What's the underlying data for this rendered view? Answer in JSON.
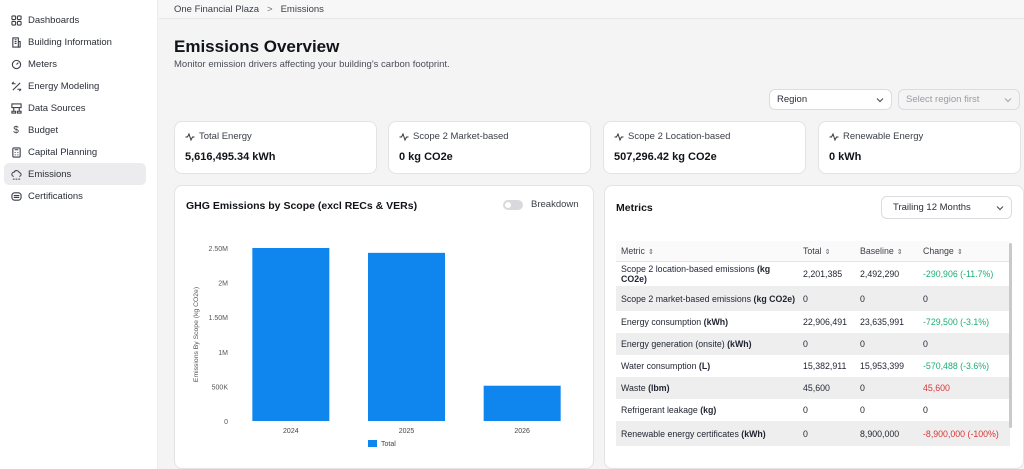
{
  "sidebar": {
    "items": [
      {
        "label": "Dashboards",
        "icon": "grid-icon",
        "active": false
      },
      {
        "label": "Building Information",
        "icon": "building-icon",
        "active": false
      },
      {
        "label": "Meters",
        "icon": "meter-icon",
        "active": false
      },
      {
        "label": "Energy Modeling",
        "icon": "modeling-icon",
        "active": false
      },
      {
        "label": "Data Sources",
        "icon": "data-sources-icon",
        "active": false
      },
      {
        "label": "Budget",
        "icon": "dollar-icon",
        "active": false
      },
      {
        "label": "Capital Planning",
        "icon": "calculator-icon",
        "active": false
      },
      {
        "label": "Emissions",
        "icon": "co2-cloud-icon",
        "active": true
      },
      {
        "label": "Certifications",
        "icon": "certificate-icon",
        "active": false
      }
    ]
  },
  "breadcrumb": {
    "root": "One Financial Plaza",
    "sep": ">",
    "current": "Emissions"
  },
  "page": {
    "title": "Emissions Overview",
    "subtitle": "Monitor emission drivers affecting your building's carbon footprint."
  },
  "filters": {
    "region": "Region",
    "region_secondary": "Select region first"
  },
  "stats": [
    {
      "label": "Total Energy",
      "value": "5,616,495.34 kWh"
    },
    {
      "label": "Scope 2 Market-based",
      "value": "0 kg CO2e"
    },
    {
      "label": "Scope 2 Location-based",
      "value": "507,296.42 kg CO2e"
    },
    {
      "label": "Renewable Energy",
      "value": "0 kWh"
    }
  ],
  "chart_panel": {
    "title": "GHG Emissions by Scope (excl RECs & VERs)",
    "toggle_label": "Breakdown",
    "toggle_on": false
  },
  "chart_data": {
    "type": "bar",
    "categories": [
      "2024",
      "2025",
      "2026"
    ],
    "series": [
      {
        "name": "Total",
        "values": [
          2500000,
          2430000,
          510000
        ],
        "color": "#0f86ee"
      }
    ],
    "ylabel": "Emissions By Scope (kg CO2e)",
    "yticks": [
      "0",
      "500K",
      "1M",
      "1.50M",
      "2M",
      "2.50M"
    ],
    "ylim": [
      0,
      2500000
    ],
    "legend": "bottom-center",
    "grid": false
  },
  "metrics": {
    "title": "Metrics",
    "period": "Trailing 12 Months",
    "columns": [
      "Metric",
      "Total",
      "Baseline",
      "Change"
    ],
    "rows": [
      {
        "metric": "Scope 2 location-based emissions",
        "unit": "(kg CO2e)",
        "total": "2,201,385",
        "baseline": "2,492,290",
        "change": "-290,906 (-11.7%)",
        "trend": "pos"
      },
      {
        "metric": "Scope 2 market-based emissions",
        "unit": "(kg CO2e)",
        "total": "0",
        "baseline": "0",
        "change": "0",
        "trend": "none"
      },
      {
        "metric": "Energy consumption",
        "unit": "(kWh)",
        "total": "22,906,491",
        "baseline": "23,635,991",
        "change": "-729,500 (-3.1%)",
        "trend": "pos"
      },
      {
        "metric": "Energy generation (onsite)",
        "unit": "(kWh)",
        "total": "0",
        "baseline": "0",
        "change": "0",
        "trend": "none"
      },
      {
        "metric": "Water consumption",
        "unit": "(L)",
        "total": "15,382,911",
        "baseline": "15,953,399",
        "change": "-570,488 (-3.6%)",
        "trend": "pos"
      },
      {
        "metric": "Waste",
        "unit": "(lbm)",
        "total": "45,600",
        "baseline": "0",
        "change": "45,600",
        "trend": "neg"
      },
      {
        "metric": "Refrigerant leakage",
        "unit": "(kg)",
        "total": "0",
        "baseline": "0",
        "change": "0",
        "trend": "none"
      },
      {
        "metric": "Renewable energy certificates",
        "unit": "(kWh)",
        "total": "0",
        "baseline": "8,900,000",
        "change": "-8,900,000 (-100%)",
        "trend": "neg"
      }
    ]
  }
}
